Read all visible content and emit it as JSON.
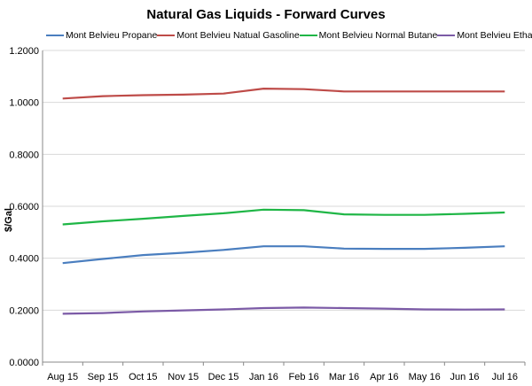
{
  "chart_data": {
    "type": "line",
    "title": "Natural Gas Liquids - Forward Curves",
    "xlabel": "",
    "ylabel": "$/Gal",
    "categories": [
      "Aug 15",
      "Sep 15",
      "Oct 15",
      "Nov 15",
      "Dec 15",
      "Jan 16",
      "Feb 16",
      "Mar 16",
      "Apr 16",
      "May 16",
      "Jun 16",
      "Jul 16"
    ],
    "y_tick_labels": [
      "0.0000",
      "0.2000",
      "0.4000",
      "0.6000",
      "0.8000",
      "1.0000",
      "1.2000"
    ],
    "ylim": [
      0,
      1.2
    ],
    "grid": true,
    "legend_position": "top",
    "series": [
      {
        "name": "Mont Belvieu Propane",
        "color": "#4a7ebf",
        "values": [
          0.381,
          0.397,
          0.412,
          0.421,
          0.432,
          0.446,
          0.446,
          0.437,
          0.436,
          0.436,
          0.44,
          0.446
        ]
      },
      {
        "name": "Mont Belvieu Natual Gasoline",
        "color": "#be4b48",
        "values": [
          1.015,
          1.024,
          1.028,
          1.03,
          1.034,
          1.053,
          1.051,
          1.042,
          1.042,
          1.042,
          1.042,
          1.042
        ]
      },
      {
        "name": "Mont Belvieu Normal Butane",
        "color": "#1fb646",
        "values": [
          0.53,
          0.542,
          0.552,
          0.563,
          0.573,
          0.587,
          0.585,
          0.569,
          0.567,
          0.567,
          0.571,
          0.576
        ]
      },
      {
        "name": "Mont Belvieu Ethane",
        "color": "#7b5aa6",
        "values": [
          0.186,
          0.189,
          0.195,
          0.199,
          0.203,
          0.208,
          0.21,
          0.208,
          0.206,
          0.203,
          0.202,
          0.203
        ]
      }
    ]
  }
}
